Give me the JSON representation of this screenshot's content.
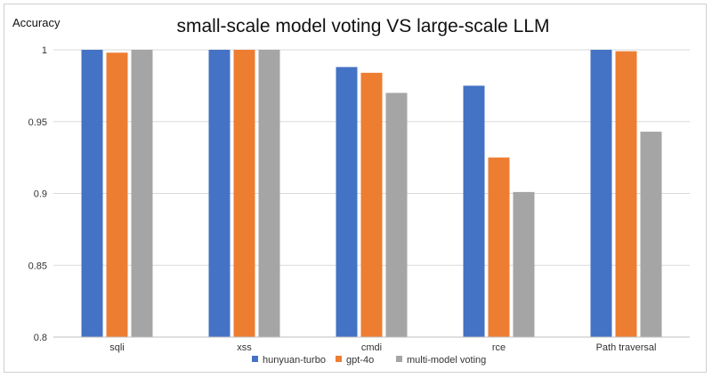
{
  "chart_data": {
    "type": "bar",
    "title": "small-scale model voting VS large-scale LLM",
    "xlabel": "",
    "ylabel": "Accuracy",
    "categories": [
      "sqli",
      "xss",
      "cmdi",
      "rce",
      "Path traversal"
    ],
    "series": [
      {
        "name": "hunyuan-turbo",
        "color": "#4472C4",
        "values": [
          1.0,
          1.0,
          0.988,
          0.975,
          1.0
        ]
      },
      {
        "name": "gpt-4o",
        "color": "#ED7D31",
        "values": [
          0.998,
          1.0,
          0.984,
          0.925,
          0.999
        ]
      },
      {
        "name": "multi-model voting",
        "color": "#A5A5A5",
        "values": [
          1.0,
          1.0,
          0.97,
          0.901,
          0.943
        ]
      }
    ],
    "ylim": [
      0.8,
      1.0
    ],
    "yticks": [
      0.8,
      0.85,
      0.9,
      0.95,
      1.0
    ],
    "ytick_labels": [
      "0.8",
      "0.85",
      "0.9",
      "0.95",
      "1"
    ],
    "grid": true,
    "legend_position": "bottom"
  }
}
